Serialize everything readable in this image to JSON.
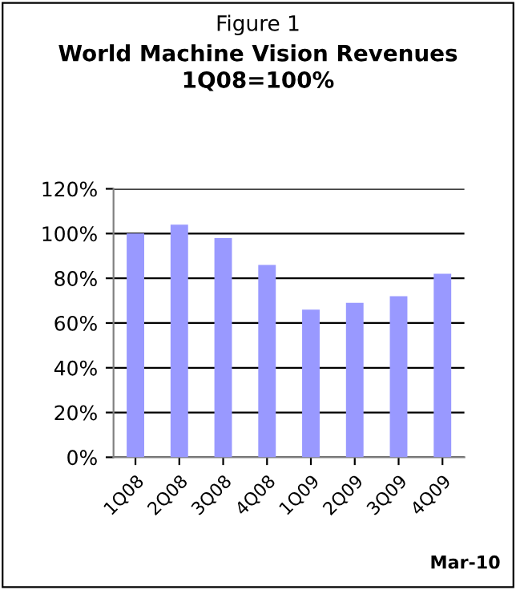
{
  "chart_data": {
    "type": "bar",
    "subtitle": "Figure 1",
    "title": "World Machine Vision Revenues\n1Q08=100%",
    "categories": [
      "1Q08",
      "2Q08",
      "3Q08",
      "4Q08",
      "1Q09",
      "2Q09",
      "3Q09",
      "4Q09"
    ],
    "values": [
      100,
      104,
      98,
      86,
      66,
      69,
      72,
      82
    ],
    "color": "#9999ff",
    "ylim": [
      0,
      120
    ],
    "yticks": [
      {
        "value": 0,
        "label": "0%"
      },
      {
        "value": 20,
        "label": "20%"
      },
      {
        "value": 40,
        "label": "40%"
      },
      {
        "value": 60,
        "label": "60%"
      },
      {
        "value": 80,
        "label": "80%"
      },
      {
        "value": 100,
        "label": "100%"
      },
      {
        "value": 120,
        "label": "120%"
      }
    ],
    "grid": "y",
    "annotations": [
      "Mar-10"
    ]
  }
}
